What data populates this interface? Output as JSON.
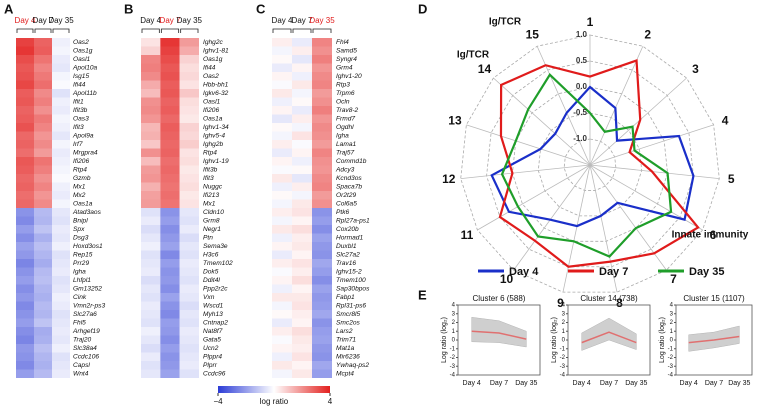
{
  "panel_labels": [
    "A",
    "B",
    "C",
    "D",
    "E"
  ],
  "colorbar": {
    "lim": [
      -4,
      4
    ],
    "ticks": [
      {
        "value": -4,
        "label": "−4"
      },
      4
    ],
    "label": "log ratio"
  },
  "chart_data": [
    {
      "type": "heatmap",
      "groups": [
        "Day 4",
        "Day 7",
        "Day 35"
      ],
      "highlight": 0,
      "genes": [
        "Oas2",
        "Oas1g",
        "Oasl1",
        "Apol10a",
        "Isg15",
        "Ifi44",
        "Apol11b",
        "Ifit1",
        "Ifit3b",
        "Oas3",
        "Ifit3",
        "Apol9a",
        "Irf7",
        "Mrgpra4",
        "Ifi206",
        "Rtp4",
        "Gzmb",
        "Mx1",
        "Mx2",
        "Oas1a",
        "Atad3aos",
        "Bnipl",
        "Spx",
        "Dsg3",
        "Hoxd3os1",
        "Rep15",
        "Prr29",
        "Igha",
        "Lhfpl1",
        "Gm13252",
        "Cink",
        "Vmn2r-ps3",
        "Slc27a6",
        "Fhl5",
        "Arhgef19",
        "Traj20",
        "Slc38a4",
        "Ccdc106",
        "Capsl",
        "Wnt4"
      ],
      "values": [
        [
          3.4,
          2.8,
          -0.3
        ],
        [
          3.6,
          2.9,
          -0.2
        ],
        [
          3.2,
          2.5,
          -0.4
        ],
        [
          3.0,
          2.2,
          -0.5
        ],
        [
          3.1,
          2.4,
          -0.2
        ],
        [
          3.3,
          2.6,
          -0.1
        ],
        [
          2.9,
          2.1,
          -0.6
        ],
        [
          3.0,
          2.3,
          -0.3
        ],
        [
          2.8,
          2.0,
          -0.4
        ],
        [
          2.9,
          2.4,
          -0.2
        ],
        [
          3.1,
          2.2,
          -0.3
        ],
        [
          2.7,
          1.9,
          -0.5
        ],
        [
          2.8,
          2.1,
          -0.2
        ],
        [
          2.6,
          1.8,
          -0.4
        ],
        [
          3.0,
          2.5,
          -0.3
        ],
        [
          2.9,
          2.3,
          -0.2
        ],
        [
          2.7,
          2.0,
          -0.1
        ],
        [
          2.8,
          2.2,
          -0.3
        ],
        [
          2.6,
          1.9,
          -0.4
        ],
        [
          2.7,
          2.1,
          -0.2
        ],
        [
          -2.2,
          -1.4,
          -0.5
        ],
        [
          -2.4,
          -1.5,
          -0.6
        ],
        [
          -2.0,
          -1.2,
          -0.4
        ],
        [
          -2.3,
          -1.6,
          -0.5
        ],
        [
          -1.9,
          -1.3,
          -0.3
        ],
        [
          -2.1,
          -1.5,
          -0.6
        ],
        [
          -2.5,
          -1.7,
          -0.5
        ],
        [
          -2.2,
          -1.4,
          -0.4
        ],
        [
          -2.0,
          -1.3,
          -0.6
        ],
        [
          -2.3,
          -1.5,
          -0.5
        ],
        [
          -2.1,
          -1.6,
          -0.3
        ],
        [
          -2.4,
          -1.4,
          -0.4
        ],
        [
          -2.2,
          -1.5,
          -0.6
        ],
        [
          -2.0,
          -1.2,
          -0.5
        ],
        [
          -2.3,
          -1.7,
          -0.4
        ],
        [
          -2.5,
          -1.6,
          -0.5
        ],
        [
          -2.1,
          -1.3,
          -0.3
        ],
        [
          -2.2,
          -1.5,
          -0.6
        ],
        [
          -2.4,
          -1.6,
          -0.5
        ],
        [
          -2.0,
          -1.4,
          -0.4
        ]
      ]
    },
    {
      "type": "heatmap",
      "groups": [
        "Day 4",
        "Day 7",
        "Day 35"
      ],
      "highlight": 1,
      "genes": [
        "Ighg2c",
        "Ighv1-81",
        "Oas1g",
        "Ifi44",
        "Oas2",
        "Hbb-bh1",
        "Igkv6-32",
        "Oasl1",
        "Ifi206",
        "Oas1a",
        "Ighv1-34",
        "Ighv5-4",
        "Ighg2b",
        "Rtp4",
        "Ighv1-19",
        "Ifit3b",
        "Ifit3",
        "Nuggc",
        "Ifi213",
        "Mx1",
        "Cldn10",
        "Grm8",
        "Negr1",
        "Ptn",
        "Sema3e",
        "H3c6",
        "Tmem102",
        "Dok5",
        "Ddit4l",
        "Ppp2r2c",
        "Vxn",
        "Wscd1",
        "Myh13",
        "Cntnap2",
        "Nat8f7",
        "Gata5",
        "Ucn2",
        "Plppr4",
        "Plprr",
        "Ccdc96"
      ],
      "values": [
        [
          0.5,
          3.6,
          1.8
        ],
        [
          0.8,
          3.4,
          1.5
        ],
        [
          2.2,
          3.2,
          0.8
        ],
        [
          2.3,
          3.0,
          0.6
        ],
        [
          2.1,
          3.1,
          0.7
        ],
        [
          1.5,
          2.9,
          0.5
        ],
        [
          1.2,
          3.0,
          1.0
        ],
        [
          2.0,
          2.8,
          0.6
        ],
        [
          2.1,
          2.9,
          0.5
        ],
        [
          1.9,
          2.7,
          0.4
        ],
        [
          1.3,
          2.9,
          0.8
        ],
        [
          1.4,
          2.8,
          0.7
        ],
        [
          1.0,
          2.7,
          0.9
        ],
        [
          2.0,
          2.8,
          0.5
        ],
        [
          1.2,
          2.6,
          0.6
        ],
        [
          1.8,
          2.7,
          0.4
        ],
        [
          1.9,
          2.6,
          0.5
        ],
        [
          1.4,
          2.5,
          0.6
        ],
        [
          1.7,
          2.6,
          0.4
        ],
        [
          1.8,
          2.5,
          0.5
        ],
        [
          -0.6,
          -2.2,
          -0.5
        ],
        [
          -0.4,
          -2.0,
          -0.6
        ],
        [
          -0.7,
          -2.3,
          -0.4
        ],
        [
          -0.5,
          -2.1,
          -0.7
        ],
        [
          -0.3,
          -1.9,
          -0.5
        ],
        [
          -0.6,
          -2.4,
          -0.6
        ],
        [
          -0.5,
          -2.0,
          -0.4
        ],
        [
          -0.4,
          -2.2,
          -0.5
        ],
        [
          -0.7,
          -2.1,
          -0.6
        ],
        [
          -0.5,
          -2.3,
          -0.4
        ],
        [
          -0.6,
          -1.9,
          -0.5
        ],
        [
          -0.4,
          -2.2,
          -0.7
        ],
        [
          -0.5,
          -2.4,
          -0.5
        ],
        [
          -0.6,
          -2.0,
          -0.6
        ],
        [
          -0.3,
          -2.1,
          -0.4
        ],
        [
          -0.5,
          -2.3,
          -0.5
        ],
        [
          -0.7,
          -2.0,
          -0.6
        ],
        [
          -0.4,
          -2.2,
          -0.5
        ],
        [
          -0.6,
          -2.1,
          -0.4
        ],
        [
          -0.5,
          -1.9,
          -0.6
        ]
      ]
    },
    {
      "type": "heatmap",
      "groups": [
        "Day 4",
        "Day 7",
        "Day 35"
      ],
      "highlight": 2,
      "genes": [
        "Fhl4",
        "Samd5",
        "Syngr4",
        "Grm4",
        "Ighv1-20",
        "Rtp3",
        "Trpm6",
        "Ocln",
        "Trav8-2",
        "Frmd7",
        "Ogdhl",
        "Igha",
        "Lama1",
        "Traj57",
        "Commd1b",
        "Adcy3",
        "Kcnd3os",
        "Spaca7b",
        "Or2t29",
        "Col6a5",
        "Ptk6",
        "Rpl27a-ps1",
        "Cox20b",
        "Hormad1",
        "Duxbl1",
        "Slc27a2",
        "Trav16",
        "Ighv15-2",
        "Tmem100",
        "Sap30bpos",
        "Fabp1",
        "Rpl31-ps6",
        "Smcr8l5",
        "Smc2os",
        "Lars2",
        "Trim71",
        "Mat1a",
        "Mir6236",
        "Ywhaq-ps2",
        "Mcpt4"
      ],
      "values": [
        [
          0.3,
          -0.4,
          2.2
        ],
        [
          -0.2,
          0.3,
          2.0
        ],
        [
          0.1,
          -0.5,
          2.3
        ],
        [
          -0.4,
          0.2,
          1.9
        ],
        [
          0.2,
          -0.3,
          2.1
        ],
        [
          -0.1,
          0.4,
          2.2
        ],
        [
          0.4,
          -0.2,
          1.8
        ],
        [
          -0.3,
          0.1,
          2.0
        ],
        [
          0.2,
          -0.4,
          2.3
        ],
        [
          -0.5,
          0.3,
          1.9
        ],
        [
          0.1,
          -0.2,
          2.1
        ],
        [
          -0.2,
          0.5,
          2.0
        ],
        [
          0.3,
          -0.1,
          1.8
        ],
        [
          -0.4,
          0.2,
          2.2
        ],
        [
          0.2,
          -0.3,
          2.0
        ],
        [
          -0.1,
          0.1,
          1.9
        ],
        [
          0.4,
          -0.5,
          2.1
        ],
        [
          -0.3,
          0.3,
          2.2
        ],
        [
          0.1,
          -0.2,
          1.8
        ],
        [
          -0.2,
          0.4,
          2.0
        ],
        [
          0.3,
          0.5,
          -2.2
        ],
        [
          -0.2,
          0.2,
          -2.0
        ],
        [
          0.4,
          0.6,
          -2.3
        ],
        [
          -0.3,
          0.3,
          -1.9
        ],
        [
          0.2,
          0.4,
          -2.1
        ],
        [
          -0.4,
          0.2,
          -2.2
        ],
        [
          0.3,
          0.5,
          -1.8
        ],
        [
          -0.1,
          0.3,
          -2.0
        ],
        [
          0.2,
          0.6,
          -2.3
        ],
        [
          -0.3,
          0.2,
          -1.9
        ],
        [
          0.4,
          0.4,
          -2.1
        ],
        [
          -0.2,
          0.5,
          -2.0
        ],
        [
          0.1,
          0.3,
          -1.8
        ],
        [
          -0.4,
          0.2,
          -2.2
        ],
        [
          0.3,
          0.6,
          -2.0
        ],
        [
          -0.1,
          0.4,
          -1.9
        ],
        [
          0.2,
          0.3,
          -2.1
        ],
        [
          -0.3,
          0.5,
          -2.2
        ],
        [
          0.4,
          0.2,
          -1.8
        ],
        [
          -0.2,
          0.4,
          -2.0
        ]
      ]
    },
    {
      "type": "radar",
      "axes": [
        "1",
        "2",
        "3",
        "4",
        "5",
        "6",
        "7",
        "8",
        "9",
        "10",
        "11",
        "12",
        "13",
        "14",
        "15"
      ],
      "rlim": [
        -1.5,
        1.0
      ],
      "rticks": [
        {
          "value": 1.0,
          "label": "1.0"
        },
        {
          "value": 0.5,
          "label": "0.5"
        },
        {
          "value": 0.0,
          "label": "0.0"
        },
        {
          "value": -0.5,
          "label": "-0.5"
        },
        {
          "value": -1.0,
          "label": "-1.0"
        }
      ],
      "annotations": [
        "Ig/TCR",
        "Ig/TCR",
        "Innate immunity"
      ],
      "series": [
        {
          "name": "Day 4",
          "color": "#1a2fc9",
          "values": [
            0.0,
            -0.3,
            -0.8,
            0.3,
            0.5,
            0.6,
            -0.6,
            -0.5,
            -0.3,
            -0.2,
            0.3,
            0.4,
            -0.5,
            -0.6,
            -0.4
          ]
        },
        {
          "name": "Day 7",
          "color": "#e01b1b",
          "values": [
            0.2,
            0.7,
            -0.2,
            -0.7,
            -0.3,
            0.9,
            0.6,
            0.4,
            0.5,
            0.3,
            0.5,
            0.0,
            0.3,
            0.8,
            0.6
          ]
        },
        {
          "name": "Day 35",
          "color": "#1f9e2a",
          "values": [
            -0.5,
            -0.8,
            -0.4,
            -0.6,
            0.0,
            0.3,
            0.0,
            0.3,
            0.0,
            0.2,
            0.1,
            0.2,
            0.0,
            0.1,
            0.4
          ]
        }
      ]
    },
    {
      "type": "line",
      "title": "Cluster 6 (588)",
      "categories": [
        "Day 4",
        "Day 7",
        "Day 35"
      ],
      "values": [
        1.0,
        0.8,
        0.1
      ],
      "band_low": [
        -0.2,
        -0.3,
        -0.8
      ],
      "band_high": [
        2.6,
        2.2,
        1.0
      ],
      "color": "#e07070",
      "ylim": [
        -4,
        4
      ],
      "yticks": [
        -4,
        -3,
        -2,
        -1,
        0,
        1,
        2,
        3,
        4
      ],
      "ylabel": "Log ratio (log₂)"
    },
    {
      "type": "line",
      "title": "Cluster 14 (738)",
      "categories": [
        "Day 4",
        "Day 7",
        "Day 35"
      ],
      "values": [
        -0.3,
        0.9,
        -0.3
      ],
      "band_low": [
        -1.2,
        0.0,
        -1.1
      ],
      "band_high": [
        0.8,
        2.5,
        0.7
      ],
      "color": "#e07070",
      "ylim": [
        -4,
        4
      ],
      "yticks": [
        -4,
        -3,
        -2,
        -1,
        0,
        1,
        2,
        3,
        4
      ],
      "ylabel": "Log ratio (log₂)"
    },
    {
      "type": "line",
      "title": "Cluster 15 (1107)",
      "categories": [
        "Day 4",
        "Day 7",
        "Day 35"
      ],
      "values": [
        -0.3,
        0.0,
        0.4
      ],
      "band_low": [
        -1.3,
        -0.9,
        -0.4
      ],
      "band_high": [
        0.6,
        0.9,
        1.6
      ],
      "color": "#e07070",
      "ylim": [
        -4,
        4
      ],
      "yticks": [
        -4,
        -3,
        -2,
        -1,
        0,
        1,
        2,
        3,
        4
      ],
      "ylabel": "Log ratio (log₂)"
    }
  ]
}
